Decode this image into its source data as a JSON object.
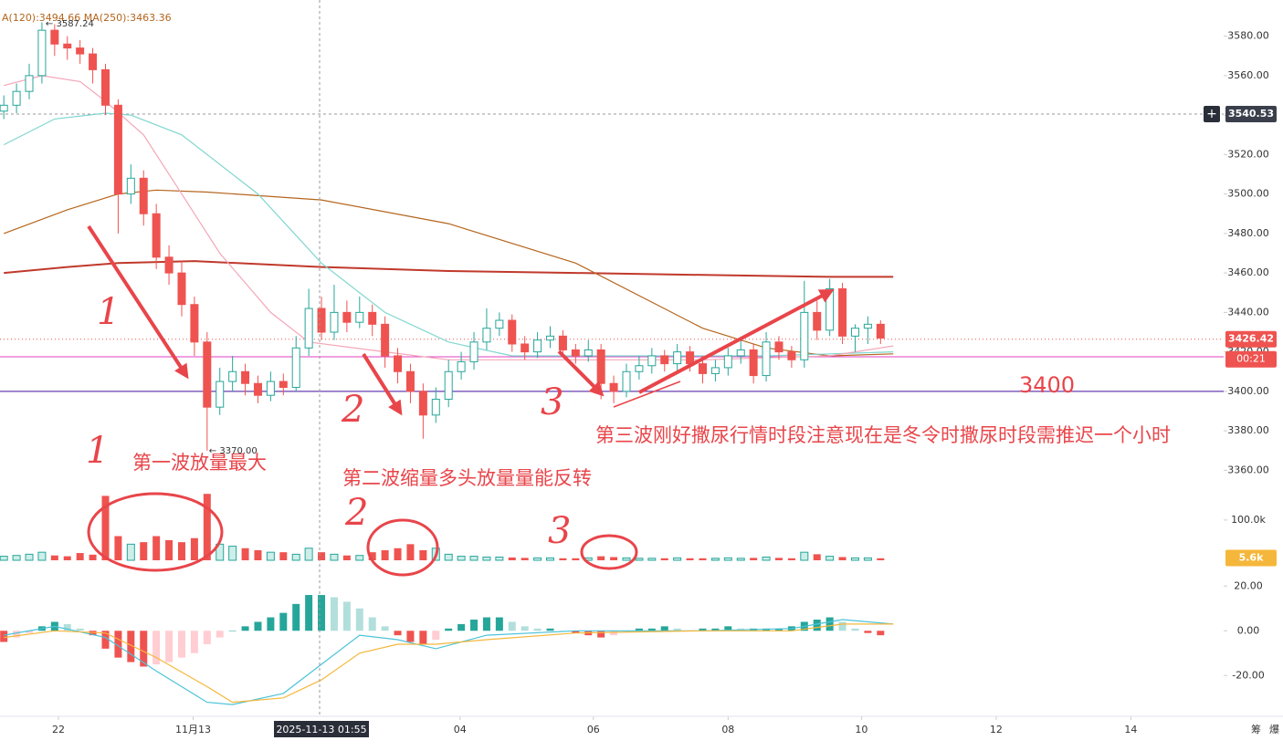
{
  "chart_data": {
    "type": "candlestick",
    "ma_legend": "A(120):3494.66 MA(250):3463.36",
    "high_marker": {
      "value": 3587.24,
      "label": "← 3587.24"
    },
    "low_marker": {
      "value": 3370,
      "label": "← 3370.00"
    },
    "up_color": "#26a69a",
    "down_color": "#ef5350",
    "ohlc": [
      [
        3542,
        3550,
        3538,
        3545
      ],
      [
        3545,
        3556,
        3541,
        3552
      ],
      [
        3552,
        3566,
        3548,
        3560
      ],
      [
        3560,
        3587,
        3556,
        3583
      ],
      [
        3583,
        3586,
        3570,
        3576
      ],
      [
        3576,
        3580,
        3568,
        3574
      ],
      [
        3574,
        3578,
        3566,
        3571
      ],
      [
        3571,
        3574,
        3556,
        3563
      ],
      [
        3563,
        3566,
        3540,
        3545
      ],
      [
        3545,
        3548,
        3480,
        3500
      ],
      [
        3500,
        3515,
        3495,
        3508
      ],
      [
        3508,
        3512,
        3484,
        3490
      ],
      [
        3490,
        3495,
        3462,
        3468
      ],
      [
        3468,
        3474,
        3454,
        3460
      ],
      [
        3460,
        3466,
        3438,
        3444
      ],
      [
        3444,
        3448,
        3418,
        3425
      ],
      [
        3425,
        3430,
        3370,
        3392
      ],
      [
        3392,
        3412,
        3388,
        3405
      ],
      [
        3405,
        3418,
        3400,
        3410
      ],
      [
        3410,
        3414,
        3398,
        3404
      ],
      [
        3404,
        3408,
        3394,
        3398
      ],
      [
        3398,
        3410,
        3395,
        3405
      ],
      [
        3405,
        3409,
        3398,
        3402
      ],
      [
        3402,
        3428,
        3400,
        3422
      ],
      [
        3422,
        3452,
        3418,
        3442
      ],
      [
        3442,
        3448,
        3426,
        3430
      ],
      [
        3430,
        3454,
        3426,
        3440
      ],
      [
        3440,
        3446,
        3430,
        3435
      ],
      [
        3435,
        3448,
        3432,
        3440
      ],
      [
        3440,
        3444,
        3428,
        3434
      ],
      [
        3434,
        3438,
        3412,
        3418
      ],
      [
        3418,
        3422,
        3404,
        3410
      ],
      [
        3410,
        3414,
        3394,
        3400
      ],
      [
        3400,
        3404,
        3376,
        3388
      ],
      [
        3388,
        3402,
        3384,
        3396
      ],
      [
        3396,
        3416,
        3392,
        3410
      ],
      [
        3410,
        3420,
        3406,
        3415
      ],
      [
        3415,
        3430,
        3411,
        3425
      ],
      [
        3425,
        3442,
        3421,
        3432
      ],
      [
        3432,
        3440,
        3428,
        3436
      ],
      [
        3436,
        3439,
        3420,
        3424
      ],
      [
        3424,
        3428,
        3416,
        3420
      ],
      [
        3420,
        3430,
        3417,
        3426
      ],
      [
        3426,
        3433,
        3422,
        3428
      ],
      [
        3428,
        3431,
        3417,
        3421
      ],
      [
        3421,
        3424,
        3414,
        3418
      ],
      [
        3418,
        3426,
        3415,
        3421
      ],
      [
        3421,
        3424,
        3396,
        3404
      ],
      [
        3404,
        3408,
        3394,
        3400
      ],
      [
        3400,
        3414,
        3397,
        3410
      ],
      [
        3410,
        3418,
        3406,
        3413
      ],
      [
        3413,
        3422,
        3409,
        3418
      ],
      [
        3418,
        3421,
        3410,
        3414
      ],
      [
        3414,
        3424,
        3410,
        3420
      ],
      [
        3420,
        3423,
        3410,
        3414
      ],
      [
        3414,
        3418,
        3404,
        3409
      ],
      [
        3409,
        3416,
        3405,
        3412
      ],
      [
        3412,
        3422,
        3408,
        3418
      ],
      [
        3418,
        3426,
        3414,
        3421
      ],
      [
        3421,
        3424,
        3404,
        3408
      ],
      [
        3408,
        3430,
        3405,
        3425
      ],
      [
        3425,
        3428,
        3416,
        3420
      ],
      [
        3420,
        3423,
        3412,
        3416
      ],
      [
        3416,
        3456,
        3412,
        3440
      ],
      [
        3440,
        3446,
        3426,
        3431
      ],
      [
        3431,
        3457,
        3428,
        3452
      ],
      [
        3452,
        3455,
        3424,
        3428
      ],
      [
        3428,
        3434,
        3420,
        3432
      ],
      [
        3432,
        3438,
        3424,
        3434
      ],
      [
        3434,
        3436,
        3424,
        3427
      ]
    ],
    "xlim": [
      -0.3,
      96
    ],
    "xticks": [
      {
        "value": 4.3,
        "label": "22"
      },
      {
        "value": 14.9,
        "label": "11月13"
      },
      {
        "value": 35.9,
        "label": "04"
      },
      {
        "value": 46.4,
        "label": "06"
      },
      {
        "value": 57,
        "label": "08"
      },
      {
        "value": 67.5,
        "label": "10"
      },
      {
        "value": 78.1,
        "label": "12"
      },
      {
        "value": 88.7,
        "label": "14"
      }
    ],
    "ylim": [
      3350,
      3590
    ],
    "yticks": [
      {
        "value": 3360,
        "label": "3360.00"
      },
      {
        "value": 3380,
        "label": "3380.00"
      },
      {
        "value": 3400,
        "label": "3400.00"
      },
      {
        "value": 3420,
        "label": "3420.00"
      },
      {
        "value": 3440,
        "label": "3440.00"
      },
      {
        "value": 3460,
        "label": "3460.00"
      },
      {
        "value": 3480,
        "label": "3480.00"
      },
      {
        "value": 3500,
        "label": "3500.00"
      },
      {
        "value": 3520,
        "label": "3520.00"
      },
      {
        "value": 3540,
        "label": "3540.00"
      },
      {
        "value": 3560,
        "label": "3560.00"
      },
      {
        "value": 3580,
        "label": "3580.00"
      }
    ],
    "ma_lines": [
      {
        "color": "#c0392b",
        "x": [
          0,
          5,
          9,
          15,
          25,
          35,
          45,
          55,
          65,
          70
        ],
        "values": [
          3460,
          3463,
          3465,
          3466,
          3463,
          3461,
          3460,
          3459,
          3458,
          3458
        ]
      },
      {
        "color": "#b5651d",
        "x": [
          0,
          5,
          9,
          12,
          16,
          25,
          35,
          45,
          55,
          60,
          65,
          70
        ],
        "values": [
          3480,
          3492,
          3500,
          3502,
          3501,
          3497,
          3485,
          3465,
          3432,
          3422,
          3418,
          3419
        ]
      },
      {
        "color": "#7fd6d0",
        "x": [
          0,
          4,
          8,
          10,
          14,
          20,
          25,
          30,
          35,
          40,
          50,
          60,
          70
        ],
        "values": [
          3525,
          3538,
          3541,
          3540,
          3530,
          3500,
          3465,
          3440,
          3425,
          3418,
          3418,
          3418,
          3420
        ]
      },
      {
        "color": "#f4a6b8",
        "x": [
          0,
          3,
          6,
          8,
          11,
          14,
          17,
          21,
          24,
          30,
          35,
          45,
          55,
          65,
          70
        ],
        "values": [
          3555,
          3560,
          3557,
          3547,
          3530,
          3500,
          3470,
          3440,
          3425,
          3420,
          3416,
          3416,
          3416,
          3418,
          3423
        ]
      }
    ],
    "crosshair": {
      "price": 3540.53,
      "label": "2025-11-13 01:55"
    },
    "last_price": 3426.42,
    "countdown": "00:21",
    "support_line": {
      "value": 3400,
      "color": "#6a3fb0"
    },
    "pink_line": {
      "value": 3417.5,
      "color": "#e040c0"
    },
    "volume": {
      "ylim": [
        0,
        170
      ],
      "yticks": [
        {
          "value": 100,
          "label": "100.0k"
        }
      ],
      "last": {
        "value": 5.6,
        "label": "5.6k"
      },
      "values": [
        10,
        12,
        15,
        20,
        12,
        10,
        18,
        14,
        160,
        60,
        40,
        45,
        60,
        50,
        45,
        55,
        165,
        40,
        35,
        30,
        25,
        20,
        20,
        15,
        30,
        20,
        15,
        12,
        12,
        20,
        25,
        30,
        40,
        25,
        30,
        15,
        10,
        10,
        8,
        8,
        7,
        6,
        6,
        6,
        5,
        5,
        6,
        10,
        8,
        6,
        5,
        5,
        5,
        6,
        5,
        5,
        5,
        6,
        5,
        6,
        8,
        6,
        5,
        20,
        15,
        10,
        8,
        6,
        6,
        5
      ]
    },
    "macd": {
      "ylim": [
        -35,
        25
      ],
      "yticks": [
        {
          "value": 20,
          "label": "20.00"
        },
        {
          "value": 0,
          "label": "0.00"
        },
        {
          "value": -20,
          "label": "-20.00"
        }
      ],
      "hist": [
        -5,
        -3,
        -1,
        2,
        4,
        3,
        1,
        -2,
        -8,
        -12,
        -14,
        -16,
        -15,
        -14,
        -12,
        -10,
        -6,
        -3,
        0,
        2,
        4,
        6,
        8,
        12,
        16,
        16,
        15,
        13,
        10,
        6,
        2,
        -2,
        -5,
        -6,
        -4,
        1,
        3,
        5,
        6,
        6,
        4,
        2,
        1,
        1,
        0,
        -1,
        -2,
        -3,
        -2,
        0,
        1,
        1,
        2,
        1,
        0,
        1,
        1,
        2,
        1,
        1,
        1,
        1,
        2,
        4,
        5,
        6,
        4,
        1,
        -1,
        -2
      ],
      "dif": {
        "color": "#4cc3d9",
        "x": [
          0,
          4,
          8,
          12,
          16,
          18,
          22,
          25,
          28,
          31,
          34,
          38,
          45,
          55,
          62,
          66,
          70
        ],
        "values": [
          -2,
          2,
          -3,
          -18,
          -32,
          -33,
          -28,
          -15,
          -2,
          -4,
          -8,
          -2,
          0,
          0,
          1,
          5,
          3
        ]
      },
      "dea": {
        "color": "#f5b73b",
        "x": [
          0,
          4,
          8,
          12,
          16,
          18,
          22,
          25,
          28,
          31,
          34,
          38,
          45,
          55,
          62,
          66,
          70
        ],
        "values": [
          -3,
          0,
          -1,
          -12,
          -25,
          -32,
          -30,
          -22,
          -10,
          -6,
          -6,
          -4,
          -1,
          0,
          0,
          3,
          3
        ]
      }
    },
    "annotations": [
      "第一波放量最大",
      "第二波缩量多头放量量能反转",
      "第三波刚好撒尿行情时段注意现在是冬令时撒尿时段需推迟一个小时",
      "3400"
    ],
    "hand_marks": [
      "1",
      "1",
      "2",
      "2",
      "3",
      "3"
    ],
    "corner_icons": [
      "筹",
      "爆"
    ]
  }
}
